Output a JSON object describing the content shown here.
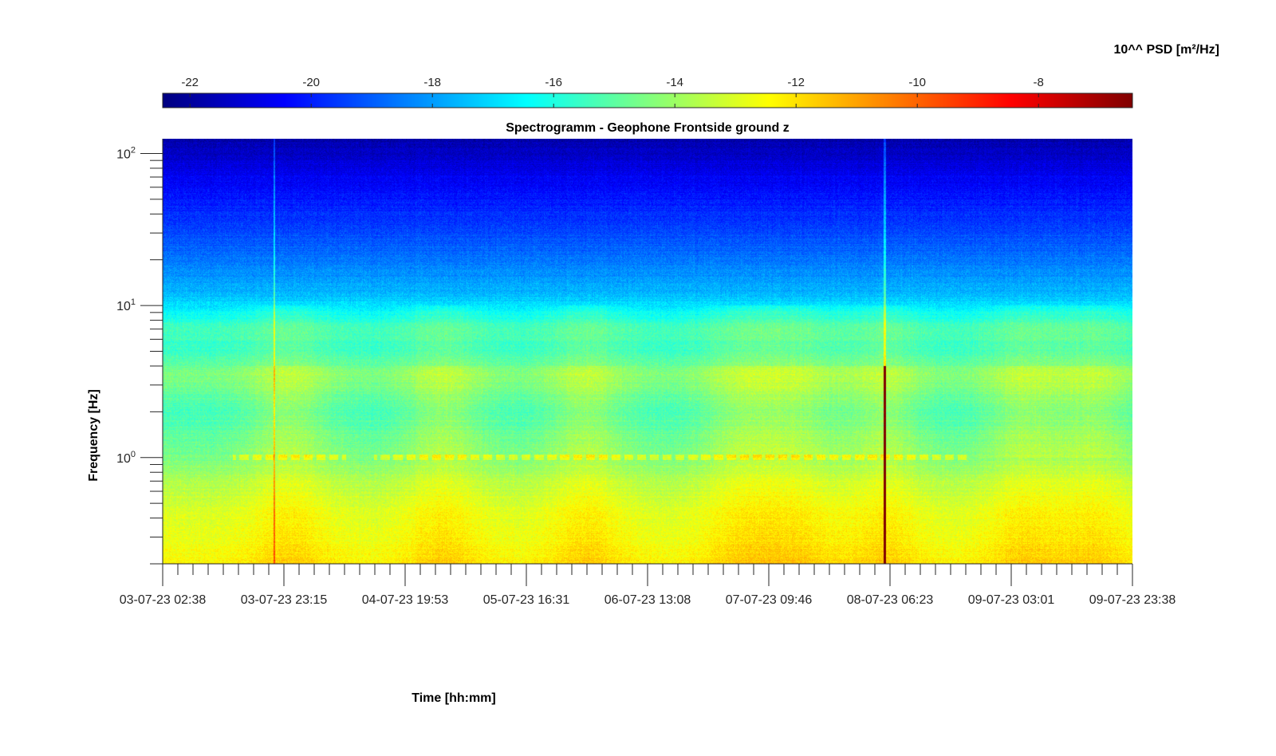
{
  "chart_data": {
    "type": "heatmap",
    "title": "Spectrogramm - Geophone Frontside ground z",
    "xlabel": "Time [hh:mm]",
    "ylabel": "Frequency [Hz]",
    "colorbar": {
      "label": "10^^ PSD [m²/Hz]",
      "colormap": "jet",
      "range": [
        -22.45,
        -6.45
      ],
      "ticks": [
        -22,
        -20,
        -18,
        -16,
        -14,
        -12,
        -10,
        -8
      ],
      "tick_labels": [
        "-22",
        "-20",
        "-18",
        "-16",
        "-14",
        "-12",
        "-10",
        "-8"
      ]
    },
    "x": {
      "start": "03-07-23 02:38",
      "end": "09-07-23 23:38",
      "ticks": [
        "03-07-23 02:38",
        "03-07-23 23:15",
        "04-07-23 19:53",
        "05-07-23 16:31",
        "06-07-23 13:08",
        "07-07-23 09:46",
        "08-07-23 06:23",
        "09-07-23 03:01",
        "09-07-23 23:38"
      ]
    },
    "y": {
      "scale": "log",
      "range": [
        0.2,
        125
      ],
      "ticks": [
        1,
        10,
        100
      ],
      "tick_labels": [
        {
          "base": "10",
          "exp": "0"
        },
        {
          "base": "10",
          "exp": "1"
        },
        {
          "base": "10",
          "exp": "2"
        }
      ]
    },
    "features": {
      "psd_by_frequency": [
        [
          0.2,
          -12.4
        ],
        [
          0.3,
          -12.8
        ],
        [
          0.5,
          -13.2
        ],
        [
          0.7,
          -13.7
        ],
        [
          1.0,
          -14.6
        ],
        [
          2.0,
          -15.4
        ],
        [
          3.5,
          -14.4
        ],
        [
          5.0,
          -15.6
        ],
        [
          7.0,
          -15.4
        ],
        [
          8.0,
          -16.0
        ],
        [
          12.0,
          -17.6
        ],
        [
          20.0,
          -18.6
        ],
        [
          40.0,
          -19.8
        ],
        [
          70.0,
          -20.6
        ],
        [
          125.0,
          -21.8
        ]
      ],
      "daily_bursts_days": [
        0.9,
        2.0,
        3.0,
        4.1,
        4.5,
        5.1,
        6.1,
        6.6
      ],
      "broadband_spike_days": [
        0.79,
        5.12
      ],
      "strong_spike_day": 5.12,
      "line_1hz_active_days": [
        [
          0.5,
          1.3
        ],
        [
          1.5,
          5.7
        ]
      ]
    }
  }
}
